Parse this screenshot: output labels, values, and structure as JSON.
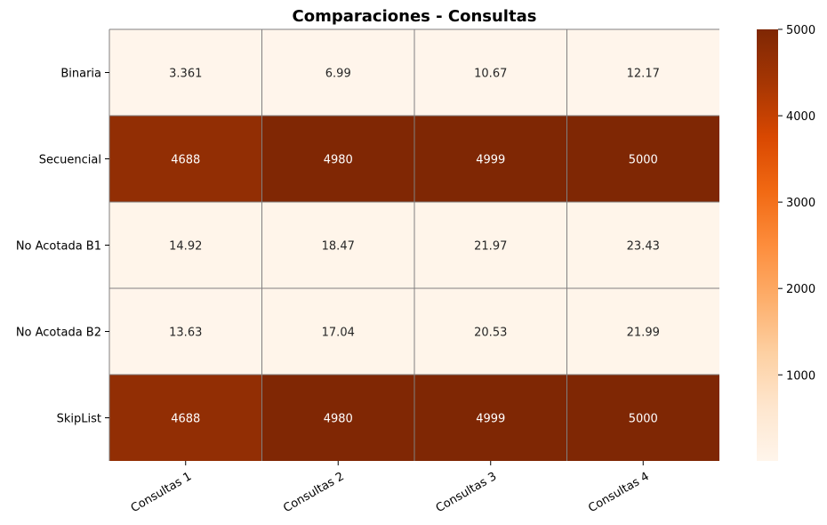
{
  "chart_data": {
    "type": "heatmap",
    "title": "Comparaciones - Consultas",
    "x_categories": [
      "Consultas 1",
      "Consultas 2",
      "Consultas 3",
      "Consultas 4"
    ],
    "y_categories": [
      "Binaria",
      "Secuencial",
      "No Acotada B1",
      "No Acotada B2",
      "SkipList"
    ],
    "values": [
      [
        3.361,
        6.99,
        10.67,
        12.17
      ],
      [
        4688,
        4980,
        4999,
        5000
      ],
      [
        14.92,
        18.47,
        21.97,
        23.43
      ],
      [
        13.63,
        17.04,
        20.53,
        21.99
      ],
      [
        4688,
        4980,
        4999,
        5000
      ]
    ],
    "value_labels": [
      [
        "3.361",
        "6.99",
        "10.67",
        "12.17"
      ],
      [
        "4688",
        "4980",
        "4999",
        "5000"
      ],
      [
        "14.92",
        "18.47",
        "21.97",
        "23.43"
      ],
      [
        "13.63",
        "17.04",
        "20.53",
        "21.99"
      ],
      [
        "4688",
        "4980",
        "4999",
        "5000"
      ]
    ],
    "colormap": "Oranges",
    "colormap_stops": [
      "#fff5eb",
      "#fee6ce",
      "#fdd0a2",
      "#fdae6b",
      "#fd8d3c",
      "#f16913",
      "#d94801",
      "#a63603",
      "#7f2704"
    ],
    "colorbar": {
      "min": 3.361,
      "max": 5000,
      "ticks": [
        1000,
        2000,
        3000,
        4000,
        5000
      ],
      "tick_labels": [
        "1000",
        "2000",
        "3000",
        "4000",
        "5000"
      ]
    },
    "gridline_color": "#808080",
    "light_text_color": "#ffffff",
    "dark_text_color": "#262626",
    "x_tick_rotation_deg": 30
  }
}
